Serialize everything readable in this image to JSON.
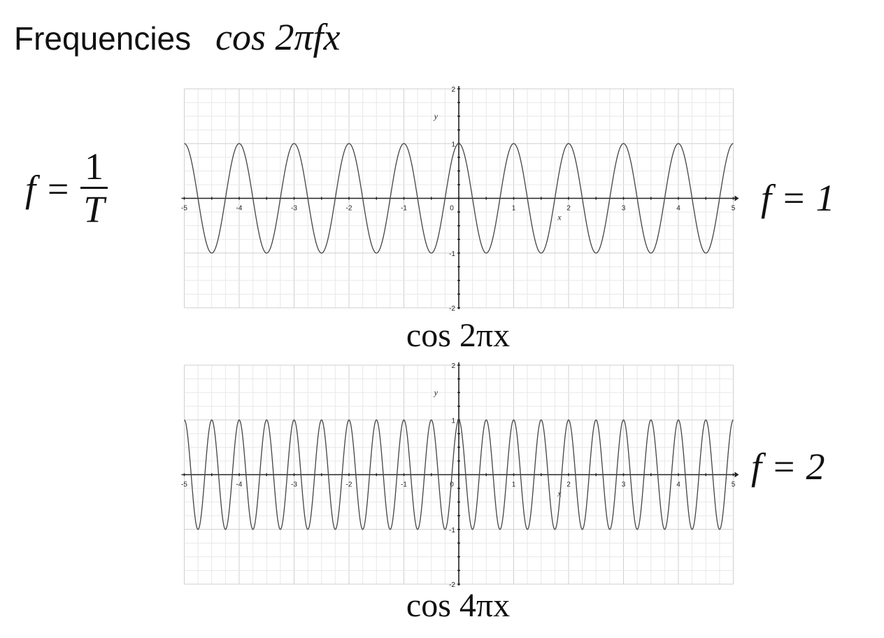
{
  "title": {
    "text": "Frequencies",
    "formula": "cos 2πfx"
  },
  "annotations": {
    "definition": {
      "lhs": "f =",
      "numerator": "1",
      "denominator": "T"
    },
    "f1": "f = 1",
    "f2": "f = 2"
  },
  "chart_data": [
    {
      "type": "line",
      "title": "",
      "caption": "cos 2πx",
      "function": "cos(2*pi*f*x)",
      "frequency": 1,
      "xlabel": "x",
      "ylabel": "y",
      "xlim": [
        -5,
        5
      ],
      "ylim": [
        -2,
        2
      ],
      "x_ticks": [
        "-5",
        "-4",
        "-3",
        "-2",
        "-1",
        "0",
        "1",
        "2",
        "3",
        "4",
        "5"
      ],
      "y_ticks": [
        "2",
        "1",
        "-1",
        "-2"
      ],
      "grid": true,
      "grid_step": 0.25,
      "line_color": "#444444"
    },
    {
      "type": "line",
      "title": "",
      "caption": "cos 4πx",
      "function": "cos(2*pi*f*x)",
      "frequency": 2,
      "xlabel": "x",
      "ylabel": "y",
      "xlim": [
        -5,
        5
      ],
      "ylim": [
        -2,
        2
      ],
      "x_ticks": [
        "-5",
        "-4",
        "-3",
        "-2",
        "-1",
        "0",
        "1",
        "2",
        "3",
        "4",
        "5"
      ],
      "y_ticks": [
        "2",
        "1",
        "-1",
        "-2"
      ],
      "grid": true,
      "grid_step": 0.25,
      "line_color": "#444444"
    }
  ]
}
